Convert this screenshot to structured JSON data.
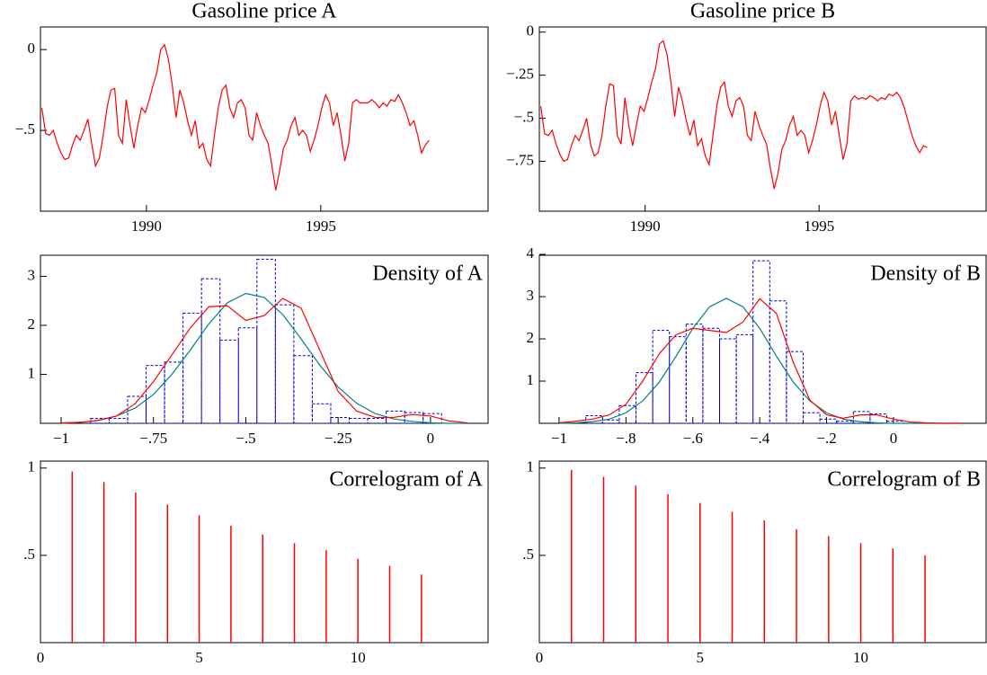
{
  "chart_data": [
    {
      "type": "line",
      "title": "Gasoline price A",
      "color": "#ff0000",
      "xlim": [
        1986.96,
        1999.8
      ],
      "xticks": [
        1990,
        1995
      ],
      "ylim": [
        -1.0,
        0.14
      ],
      "yticks": [
        0,
        {
          "value": -0.5,
          "label": "−.5"
        }
      ],
      "x": [
        1987.0,
        1987.11,
        1987.22,
        1987.33,
        1987.44,
        1987.55,
        1987.66,
        1987.77,
        1987.88,
        1987.99,
        1988.1,
        1988.21,
        1988.32,
        1988.43,
        1988.54,
        1988.65,
        1988.76,
        1988.87,
        1988.98,
        1989.09,
        1989.2,
        1989.31,
        1989.42,
        1989.53,
        1989.64,
        1989.75,
        1989.86,
        1989.97,
        1990.08,
        1990.19,
        1990.3,
        1990.41,
        1990.52,
        1990.63,
        1990.74,
        1990.85,
        1990.96,
        1991.07,
        1991.18,
        1991.29,
        1991.4,
        1991.51,
        1991.62,
        1991.73,
        1991.84,
        1991.95,
        1992.06,
        1992.17,
        1992.28,
        1992.39,
        1992.5,
        1992.61,
        1992.72,
        1992.83,
        1992.94,
        1993.05,
        1993.16,
        1993.27,
        1993.38,
        1993.49,
        1993.6,
        1993.71,
        1993.82,
        1993.93,
        1994.04,
        1994.15,
        1994.26,
        1994.37,
        1994.48,
        1994.59,
        1994.7,
        1994.81,
        1994.92,
        1995.03,
        1995.14,
        1995.25,
        1995.36,
        1995.47,
        1995.58,
        1995.69,
        1995.8,
        1995.91,
        1996.02,
        1996.13,
        1996.24,
        1996.35,
        1996.46,
        1996.57,
        1996.68,
        1996.79,
        1996.9,
        1997.01,
        1997.12,
        1997.23,
        1997.34,
        1997.45,
        1997.56,
        1997.67,
        1997.78,
        1997.89,
        1998.0,
        1998.11
      ],
      "values": [
        -0.36,
        -0.52,
        -0.53,
        -0.5,
        -0.58,
        -0.64,
        -0.68,
        -0.67,
        -0.59,
        -0.53,
        -0.56,
        -0.5,
        -0.43,
        -0.58,
        -0.72,
        -0.67,
        -0.53,
        -0.36,
        -0.25,
        -0.24,
        -0.53,
        -0.58,
        -0.31,
        -0.47,
        -0.61,
        -0.47,
        -0.36,
        -0.39,
        -0.31,
        -0.22,
        -0.14,
        0.0,
        0.03,
        -0.06,
        -0.22,
        -0.42,
        -0.25,
        -0.33,
        -0.44,
        -0.53,
        -0.44,
        -0.61,
        -0.58,
        -0.68,
        -0.72,
        -0.53,
        -0.36,
        -0.25,
        -0.22,
        -0.36,
        -0.42,
        -0.33,
        -0.31,
        -0.36,
        -0.53,
        -0.56,
        -0.39,
        -0.47,
        -0.53,
        -0.58,
        -0.72,
        -0.87,
        -0.75,
        -0.61,
        -0.56,
        -0.47,
        -0.42,
        -0.53,
        -0.5,
        -0.53,
        -0.63,
        -0.56,
        -0.47,
        -0.36,
        -0.28,
        -0.33,
        -0.47,
        -0.39,
        -0.53,
        -0.69,
        -0.58,
        -0.33,
        -0.31,
        -0.33,
        -0.33,
        -0.33,
        -0.31,
        -0.33,
        -0.36,
        -0.33,
        -0.35,
        -0.31,
        -0.32,
        -0.28,
        -0.33,
        -0.39,
        -0.47,
        -0.44,
        -0.53,
        -0.64,
        -0.59,
        -0.56
      ]
    },
    {
      "type": "line",
      "title": "Gasoline price B",
      "color": "#ff0000",
      "xlim": [
        1986.96,
        1999.8
      ],
      "xticks": [
        1990,
        1995
      ],
      "ylim": [
        -1.04,
        0.03
      ],
      "yticks": [
        0,
        {
          "value": -0.25,
          "label": "−.25"
        },
        {
          "value": -0.5,
          "label": "−.5"
        },
        {
          "value": -0.75,
          "label": "−.75"
        }
      ],
      "x": [
        1987.0,
        1987.11,
        1987.22,
        1987.33,
        1987.44,
        1987.55,
        1987.66,
        1987.77,
        1987.88,
        1987.99,
        1988.1,
        1988.21,
        1988.32,
        1988.43,
        1988.54,
        1988.65,
        1988.76,
        1988.87,
        1988.98,
        1989.09,
        1989.2,
        1989.31,
        1989.42,
        1989.53,
        1989.64,
        1989.75,
        1989.86,
        1989.97,
        1990.08,
        1990.19,
        1990.3,
        1990.41,
        1990.52,
        1990.63,
        1990.74,
        1990.85,
        1990.96,
        1991.07,
        1991.18,
        1991.29,
        1991.4,
        1991.51,
        1991.62,
        1991.73,
        1991.84,
        1991.95,
        1992.06,
        1992.17,
        1992.28,
        1992.39,
        1992.5,
        1992.61,
        1992.72,
        1992.83,
        1992.94,
        1993.05,
        1993.16,
        1993.27,
        1993.38,
        1993.49,
        1993.6,
        1993.71,
        1993.82,
        1993.93,
        1994.04,
        1994.15,
        1994.26,
        1994.37,
        1994.48,
        1994.59,
        1994.7,
        1994.81,
        1994.92,
        1995.03,
        1995.14,
        1995.25,
        1995.36,
        1995.47,
        1995.58,
        1995.69,
        1995.8,
        1995.91,
        1996.02,
        1996.13,
        1996.24,
        1996.35,
        1996.46,
        1996.57,
        1996.68,
        1996.79,
        1996.9,
        1997.01,
        1997.12,
        1997.23,
        1997.34,
        1997.45,
        1997.56,
        1997.67,
        1997.78,
        1997.89,
        1998.0,
        1998.11
      ],
      "values": [
        -0.43,
        -0.59,
        -0.6,
        -0.57,
        -0.65,
        -0.71,
        -0.75,
        -0.74,
        -0.66,
        -0.6,
        -0.63,
        -0.57,
        -0.5,
        -0.65,
        -0.72,
        -0.7,
        -0.6,
        -0.43,
        -0.3,
        -0.31,
        -0.6,
        -0.65,
        -0.38,
        -0.54,
        -0.66,
        -0.54,
        -0.43,
        -0.46,
        -0.38,
        -0.29,
        -0.21,
        -0.07,
        -0.05,
        -0.13,
        -0.29,
        -0.49,
        -0.32,
        -0.4,
        -0.51,
        -0.6,
        -0.51,
        -0.66,
        -0.62,
        -0.72,
        -0.77,
        -0.6,
        -0.43,
        -0.32,
        -0.29,
        -0.43,
        -0.49,
        -0.4,
        -0.38,
        -0.43,
        -0.6,
        -0.63,
        -0.46,
        -0.54,
        -0.6,
        -0.65,
        -0.79,
        -0.91,
        -0.82,
        -0.68,
        -0.63,
        -0.54,
        -0.49,
        -0.6,
        -0.57,
        -0.6,
        -0.7,
        -0.63,
        -0.54,
        -0.43,
        -0.35,
        -0.4,
        -0.54,
        -0.46,
        -0.6,
        -0.74,
        -0.65,
        -0.4,
        -0.37,
        -0.39,
        -0.38,
        -0.39,
        -0.37,
        -0.38,
        -0.4,
        -0.38,
        -0.39,
        -0.36,
        -0.37,
        -0.35,
        -0.38,
        -0.44,
        -0.52,
        -0.6,
        -0.66,
        -0.7,
        -0.66,
        -0.67
      ]
    },
    {
      "type": "histogram",
      "title": "Density of A",
      "color": "#0000cc",
      "xlim": [
        -1.056,
        0.156
      ],
      "xticks": [
        {
          "value": -1,
          "label": "−1"
        },
        {
          "value": -0.75,
          "label": "−.75"
        },
        {
          "value": -0.5,
          "label": "−.5"
        },
        {
          "value": -0.25,
          "label": "−.25"
        },
        0
      ],
      "ylim": [
        0,
        3.43
      ],
      "yticks": [
        1,
        2,
        3
      ],
      "bins": [
        -0.92,
        -0.87,
        -0.82,
        -0.77,
        -0.72,
        -0.67,
        -0.62,
        -0.57,
        -0.52,
        -0.47,
        -0.42,
        -0.37,
        -0.32,
        -0.27,
        -0.22,
        -0.17,
        -0.12,
        -0.07,
        -0.02,
        0.03
      ],
      "values": [
        0.1,
        0.1,
        0.55,
        1.18,
        1.25,
        2.25,
        2.95,
        1.7,
        1.95,
        3.35,
        2.42,
        1.38,
        0.4,
        0.12,
        0.1,
        0.1,
        0.25,
        0.22,
        0.2
      ],
      "curves": [
        {
          "color": "#008080",
          "x": [
            -1.0,
            -0.95,
            -0.9,
            -0.85,
            -0.8,
            -0.75,
            -0.7,
            -0.65,
            -0.6,
            -0.55,
            -0.5,
            -0.45,
            -0.4,
            -0.35,
            -0.3,
            -0.25,
            -0.2,
            -0.15,
            -0.1,
            -0.05,
            0,
            0.05,
            0.1
          ],
          "values": [
            0.01,
            0.02,
            0.06,
            0.15,
            0.31,
            0.59,
            1.0,
            1.5,
            2.03,
            2.46,
            2.65,
            2.57,
            2.22,
            1.72,
            1.19,
            0.74,
            0.41,
            0.2,
            0.09,
            0.04,
            0.01,
            0,
            0
          ]
        },
        {
          "color": "#ff0000",
          "x": [
            -1.0,
            -0.95,
            -0.9,
            -0.85,
            -0.8,
            -0.75,
            -0.7,
            -0.65,
            -0.6,
            -0.55,
            -0.5,
            -0.45,
            -0.4,
            -0.35,
            -0.3,
            -0.25,
            -0.2,
            -0.15,
            -0.1,
            -0.05,
            0,
            0.05,
            0.1
          ],
          "values": [
            0,
            0.02,
            0.06,
            0.15,
            0.4,
            0.85,
            1.4,
            1.95,
            2.38,
            2.4,
            2.1,
            2.2,
            2.55,
            2.35,
            1.5,
            0.65,
            0.25,
            0.12,
            0.12,
            0.18,
            0.15,
            0.05,
            0.01
          ]
        }
      ]
    },
    {
      "type": "histogram",
      "title": "Density of B",
      "color": "#0000cc",
      "xlim": [
        -1.059,
        0.277
      ],
      "xticks": [
        {
          "value": -1,
          "label": "−1"
        },
        {
          "value": -0.8,
          "label": "−.8"
        },
        {
          "value": -0.6,
          "label": "−.6"
        },
        {
          "value": -0.4,
          "label": "−.4"
        },
        {
          "value": -0.2,
          "label": "−.2"
        },
        0
      ],
      "ylim": [
        0,
        3.98
      ],
      "yticks": [
        1,
        2,
        3,
        4
      ],
      "bins": [
        -0.92,
        -0.87,
        -0.82,
        -0.77,
        -0.72,
        -0.67,
        -0.62,
        -0.57,
        -0.52,
        -0.47,
        -0.42,
        -0.37,
        -0.32,
        -0.27,
        -0.22,
        -0.17,
        -0.12,
        -0.07,
        -0.02,
        0.03
      ],
      "values": [
        0.18,
        0.08,
        0.42,
        1.2,
        2.2,
        2.05,
        2.35,
        2.25,
        2.0,
        2.1,
        3.85,
        2.9,
        1.7,
        0.25,
        0.1,
        0.05,
        0.28,
        0.22,
        0.05
      ],
      "curves": [
        {
          "color": "#008080",
          "x": [
            -1.0,
            -0.95,
            -0.9,
            -0.85,
            -0.8,
            -0.75,
            -0.7,
            -0.65,
            -0.6,
            -0.55,
            -0.5,
            -0.45,
            -0.4,
            -0.35,
            -0.3,
            -0.25,
            -0.2,
            -0.15,
            -0.1,
            -0.05,
            0,
            0.05,
            0.1,
            0.15,
            0.2
          ],
          "values": [
            0,
            0.01,
            0.04,
            0.1,
            0.25,
            0.53,
            0.98,
            1.59,
            2.25,
            2.76,
            2.96,
            2.76,
            2.25,
            1.59,
            0.98,
            0.53,
            0.25,
            0.1,
            0.04,
            0.01,
            0,
            0,
            0,
            0,
            0
          ]
        },
        {
          "color": "#ff0000",
          "x": [
            -1.0,
            -0.95,
            -0.9,
            -0.85,
            -0.8,
            -0.75,
            -0.7,
            -0.65,
            -0.6,
            -0.55,
            -0.5,
            -0.45,
            -0.4,
            -0.35,
            -0.3,
            -0.25,
            -0.2,
            -0.15,
            -0.1,
            -0.05,
            0,
            0.05,
            0.1,
            0.15,
            0.2
          ],
          "values": [
            0.01,
            0.05,
            0.1,
            0.2,
            0.45,
            1.0,
            1.65,
            2.1,
            2.25,
            2.2,
            2.15,
            2.4,
            2.95,
            2.6,
            1.45,
            0.55,
            0.2,
            0.12,
            0.2,
            0.2,
            0.1,
            0.03,
            0.01,
            0,
            0
          ]
        }
      ]
    },
    {
      "type": "bar",
      "title": "Correlogram of A",
      "color": "#ff0000",
      "xlim": [
        0,
        14.1
      ],
      "xticks": [
        0,
        5,
        10
      ],
      "ylim": [
        0,
        1.04
      ],
      "yticks": [
        1,
        {
          "value": 0.5,
          "label": ".5"
        }
      ],
      "x": [
        1,
        2,
        3,
        4,
        5,
        6,
        7,
        8,
        9,
        10,
        11,
        12
      ],
      "values": [
        0.98,
        0.92,
        0.86,
        0.79,
        0.73,
        0.67,
        0.62,
        0.57,
        0.53,
        0.48,
        0.44,
        0.39
      ]
    },
    {
      "type": "bar",
      "title": "Correlogram of B",
      "color": "#ff0000",
      "xlim": [
        0,
        13.9
      ],
      "xticks": [
        0,
        5,
        10
      ],
      "ylim": [
        0,
        1.04
      ],
      "yticks": [
        1,
        {
          "value": 0.5,
          "label": ".5"
        }
      ],
      "x": [
        1,
        2,
        3,
        4,
        5,
        6,
        7,
        8,
        9,
        10,
        11,
        12
      ],
      "values": [
        0.99,
        0.95,
        0.9,
        0.85,
        0.8,
        0.75,
        0.7,
        0.65,
        0.61,
        0.57,
        0.54,
        0.5
      ]
    }
  ]
}
